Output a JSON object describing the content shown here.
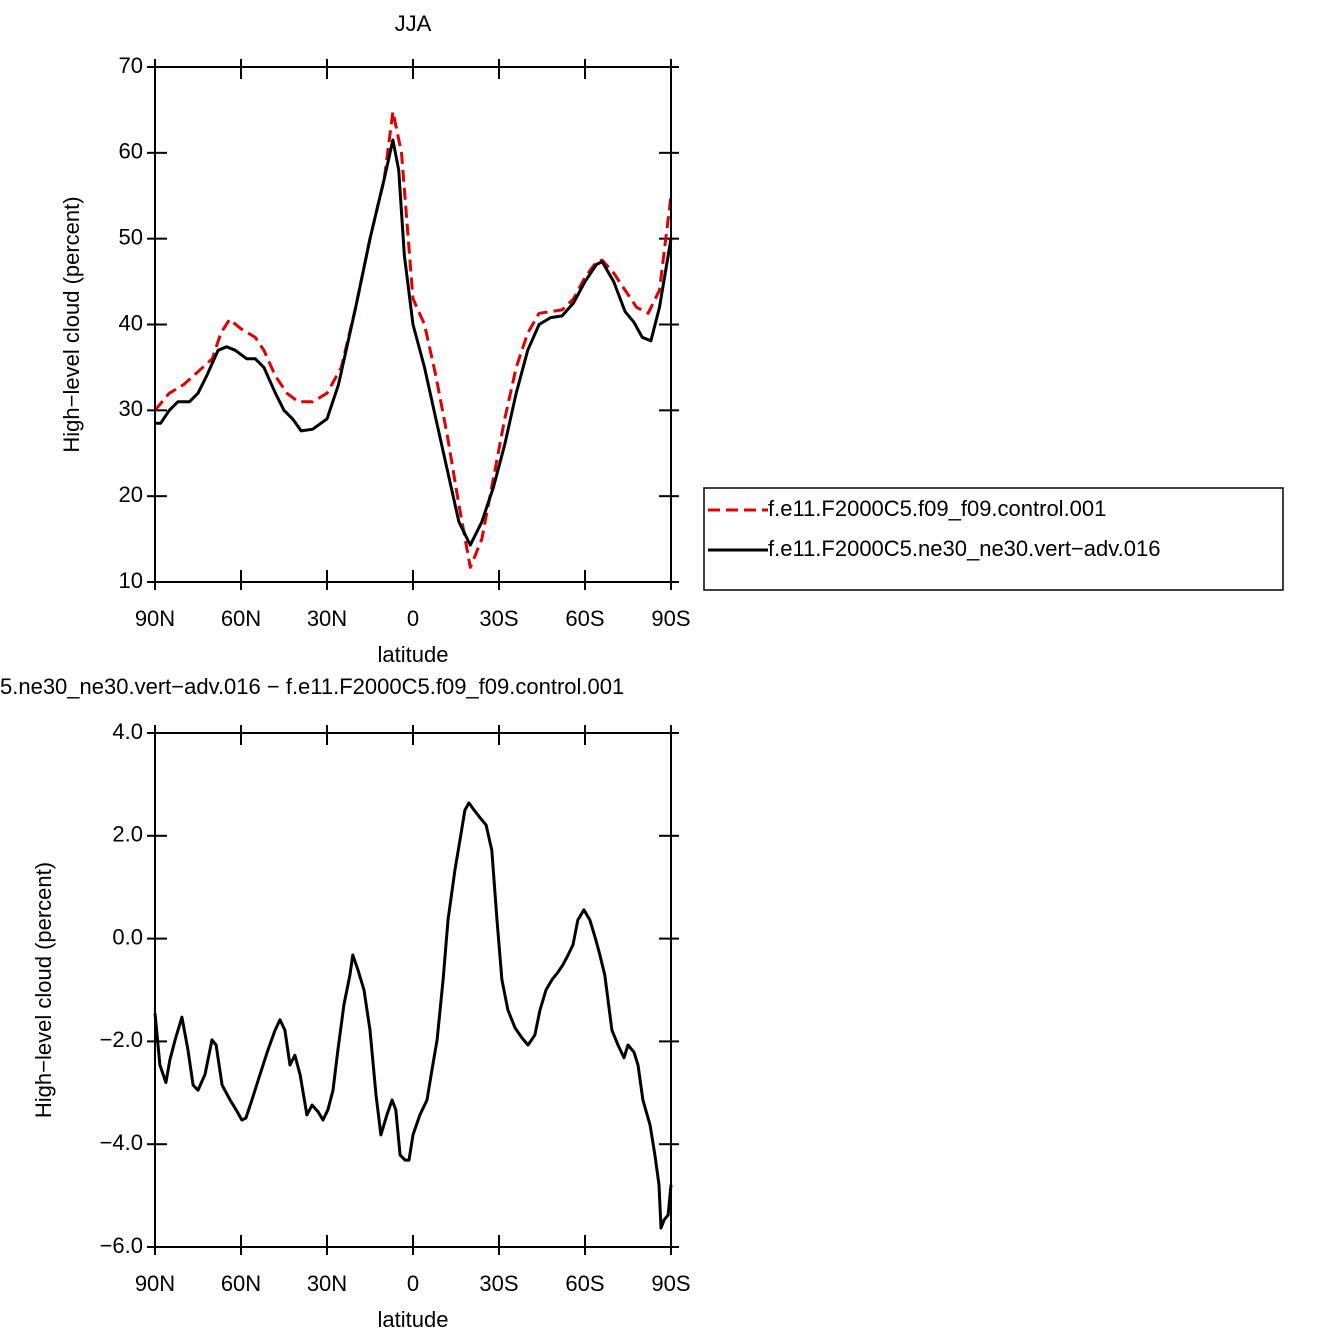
{
  "chart_data": [
    {
      "type": "line",
      "title": "JJA",
      "xlabel": "latitude",
      "ylabel": "High−level cloud (percent)",
      "xlim": [
        90,
        -90
      ],
      "xticks": [
        {
          "value": 90,
          "label": "90N"
        },
        {
          "value": 60,
          "label": "60N"
        },
        {
          "value": 30,
          "label": "30N"
        },
        0,
        {
          "value": -30,
          "label": "30S"
        },
        {
          "value": -60,
          "label": "60S"
        },
        {
          "value": -90,
          "label": "90S"
        }
      ],
      "ylim": [
        10,
        70
      ],
      "yticks": [
        10,
        20,
        30,
        40,
        50,
        60,
        70
      ],
      "legend": "outside-right",
      "series": [
        {
          "name": "f.e11.F2000C5.f09_f09.control.001",
          "color": "#e00000",
          "dashed": true,
          "x": [
            90,
            85,
            80,
            75,
            70,
            67,
            64,
            60,
            55,
            52,
            48,
            44,
            40,
            35,
            30,
            25,
            20,
            15,
            10,
            7,
            4,
            0,
            -4,
            -8,
            -12,
            -16,
            -20,
            -24,
            -28,
            -32,
            -36,
            -40,
            -44,
            -48,
            -52,
            -56,
            -60,
            -64,
            -66,
            -70,
            -74,
            -78,
            -82,
            -86,
            -90
          ],
          "values": [
            30,
            32,
            33,
            34.5,
            36,
            39,
            40.6,
            39.5,
            38.5,
            37,
            34,
            32,
            31,
            31,
            32,
            35,
            42,
            50,
            57,
            64.8,
            60,
            43,
            40,
            34,
            27,
            19,
            11.7,
            15,
            22,
            29,
            35,
            39,
            41.3,
            41.5,
            41.7,
            43,
            45.5,
            47.3,
            47.5,
            46,
            44,
            42,
            41.3,
            44,
            55
          ]
        },
        {
          "name": "f.e11.F2000C5.ne30_ne30.vert−adv.016",
          "color": "#000000",
          "dashed": false,
          "x": [
            90,
            88,
            85,
            82,
            78,
            75,
            72,
            68,
            65,
            62,
            58,
            55,
            52,
            48,
            45,
            42,
            39,
            35,
            30,
            26,
            20,
            15,
            10,
            7,
            5,
            3,
            0,
            -4,
            -8,
            -12,
            -16,
            -20,
            -24,
            -28,
            -32,
            -36,
            -40,
            -44,
            -48,
            -52,
            -56,
            -60,
            -64,
            -66,
            -70,
            -74,
            -77,
            -80,
            -83,
            -86,
            -90
          ],
          "values": [
            28.5,
            28.5,
            30,
            31,
            31,
            32,
            34,
            37,
            37.4,
            37,
            36,
            36,
            35,
            32,
            30,
            29,
            27.6,
            27.8,
            29,
            33,
            42,
            50,
            57,
            61.5,
            58,
            48,
            40,
            35,
            29,
            23,
            17,
            14.3,
            17,
            21,
            26,
            32,
            37,
            40,
            40.8,
            41,
            42.5,
            45,
            47,
            47.3,
            45,
            41.5,
            40.3,
            38.5,
            38.1,
            42,
            50
          ]
        }
      ]
    },
    {
      "type": "line",
      "title": "5.ne30_ne30.vert−adv.016 − f.e11.F2000C5.f09_f09.control.001",
      "xlabel": "latitude",
      "ylabel": "High−level cloud (percent)",
      "xlim": [
        90,
        -90
      ],
      "xticks": [
        {
          "value": 90,
          "label": "90N"
        },
        {
          "value": 60,
          "label": "60N"
        },
        {
          "value": 30,
          "label": "30N"
        },
        0,
        {
          "value": -30,
          "label": "30S"
        },
        {
          "value": -60,
          "label": "60S"
        },
        {
          "value": -90,
          "label": "90S"
        }
      ],
      "ylim": [
        -6,
        4
      ],
      "yticks": [
        {
          "value": -6,
          "label": "−6.0"
        },
        {
          "value": -4,
          "label": "−4.0"
        },
        {
          "value": -2,
          "label": "−2.0"
        },
        {
          "value": 0,
          "label": "0.0"
        },
        {
          "value": 2,
          "label": "2.0"
        },
        {
          "value": 4,
          "label": "4.0"
        }
      ],
      "series": [
        {
          "color": "#000000",
          "dashed": false,
          "x": [
            90,
            88.3,
            86.2,
            84.8,
            83,
            80.6,
            78.5,
            76.7,
            75,
            72.6,
            70.1,
            68.7,
            66.6,
            63.8,
            61.7,
            59.7,
            58.3,
            56.2,
            53.4,
            50.6,
            48.1,
            46.4,
            44.7,
            42.9,
            41.2,
            39.4,
            37,
            35.2,
            33.1,
            31.4,
            29.7,
            27.9,
            26.2,
            24.1,
            22,
            21,
            19.2,
            17.1,
            15,
            12.9,
            11.2,
            9.1,
            7.3,
            6,
            4.5,
            2.8,
            1.4,
            0,
            -2.4,
            -4.9,
            -6.6,
            -8.4,
            -10.5,
            -12.2,
            -14.6,
            -16.4,
            -18.1,
            -19.5,
            -21.3,
            -23.4,
            -25.5,
            -27.5,
            -29.3,
            -31,
            -33.1,
            -35.6,
            -38,
            -40.1,
            -42.5,
            -44.3,
            -46.4,
            -48.5,
            -50.6,
            -52.3,
            -54.1,
            -55.8,
            -57.5,
            -59.6,
            -61.7,
            -63.8,
            -65.2,
            -66.9,
            -69.4,
            -71.5,
            -73.6,
            -75,
            -77.1,
            -78.5,
            -80.2,
            -82.7,
            -84.4,
            -85.8,
            -86.5,
            -87.6,
            -89,
            -90
          ],
          "values": [
            -1.45,
            -2.46,
            -2.8,
            -2.36,
            -1.97,
            -1.53,
            -2.17,
            -2.85,
            -2.95,
            -2.65,
            -1.97,
            -2.07,
            -2.85,
            -3.14,
            -3.33,
            -3.53,
            -3.49,
            -3.14,
            -2.65,
            -2.17,
            -1.78,
            -1.58,
            -1.78,
            -2.46,
            -2.27,
            -2.65,
            -3.43,
            -3.24,
            -3.37,
            -3.53,
            -3.33,
            -2.95,
            -2.17,
            -1.29,
            -0.71,
            -0.32,
            -0.61,
            -1.0,
            -1.78,
            -3.04,
            -3.82,
            -3.43,
            -3.14,
            -3.33,
            -4.21,
            -4.31,
            -4.31,
            -3.82,
            -3.43,
            -3.14,
            -2.56,
            -1.97,
            -0.8,
            0.36,
            1.33,
            1.92,
            2.5,
            2.64,
            2.5,
            2.35,
            2.21,
            1.72,
            0.36,
            -0.8,
            -1.39,
            -1.74,
            -1.93,
            -2.07,
            -1.88,
            -1.39,
            -1.0,
            -0.8,
            -0.65,
            -0.51,
            -0.32,
            -0.12,
            0.36,
            0.56,
            0.36,
            -0.03,
            -0.32,
            -0.71,
            -1.78,
            -2.07,
            -2.32,
            -2.07,
            -2.21,
            -2.46,
            -3.14,
            -3.63,
            -4.21,
            -4.79,
            -5.63,
            -5.47,
            -5.38,
            -4.79
          ]
        }
      ]
    }
  ]
}
